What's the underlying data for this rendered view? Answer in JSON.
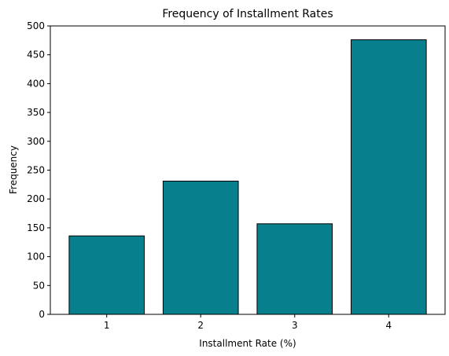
{
  "chart_data": {
    "type": "bar",
    "title": "Frequency of Installment Rates",
    "xlabel": "Installment Rate (%)",
    "ylabel": "Frequency",
    "categories": [
      "1",
      "2",
      "3",
      "4"
    ],
    "values": [
      136,
      231,
      157,
      476
    ],
    "ylim": [
      0,
      500
    ],
    "yticks": [
      0,
      50,
      100,
      150,
      200,
      250,
      300,
      350,
      400,
      450,
      500
    ],
    "bar_color": "#087f8c",
    "edge_color": "#000000",
    "grid": false,
    "legend": "none"
  }
}
